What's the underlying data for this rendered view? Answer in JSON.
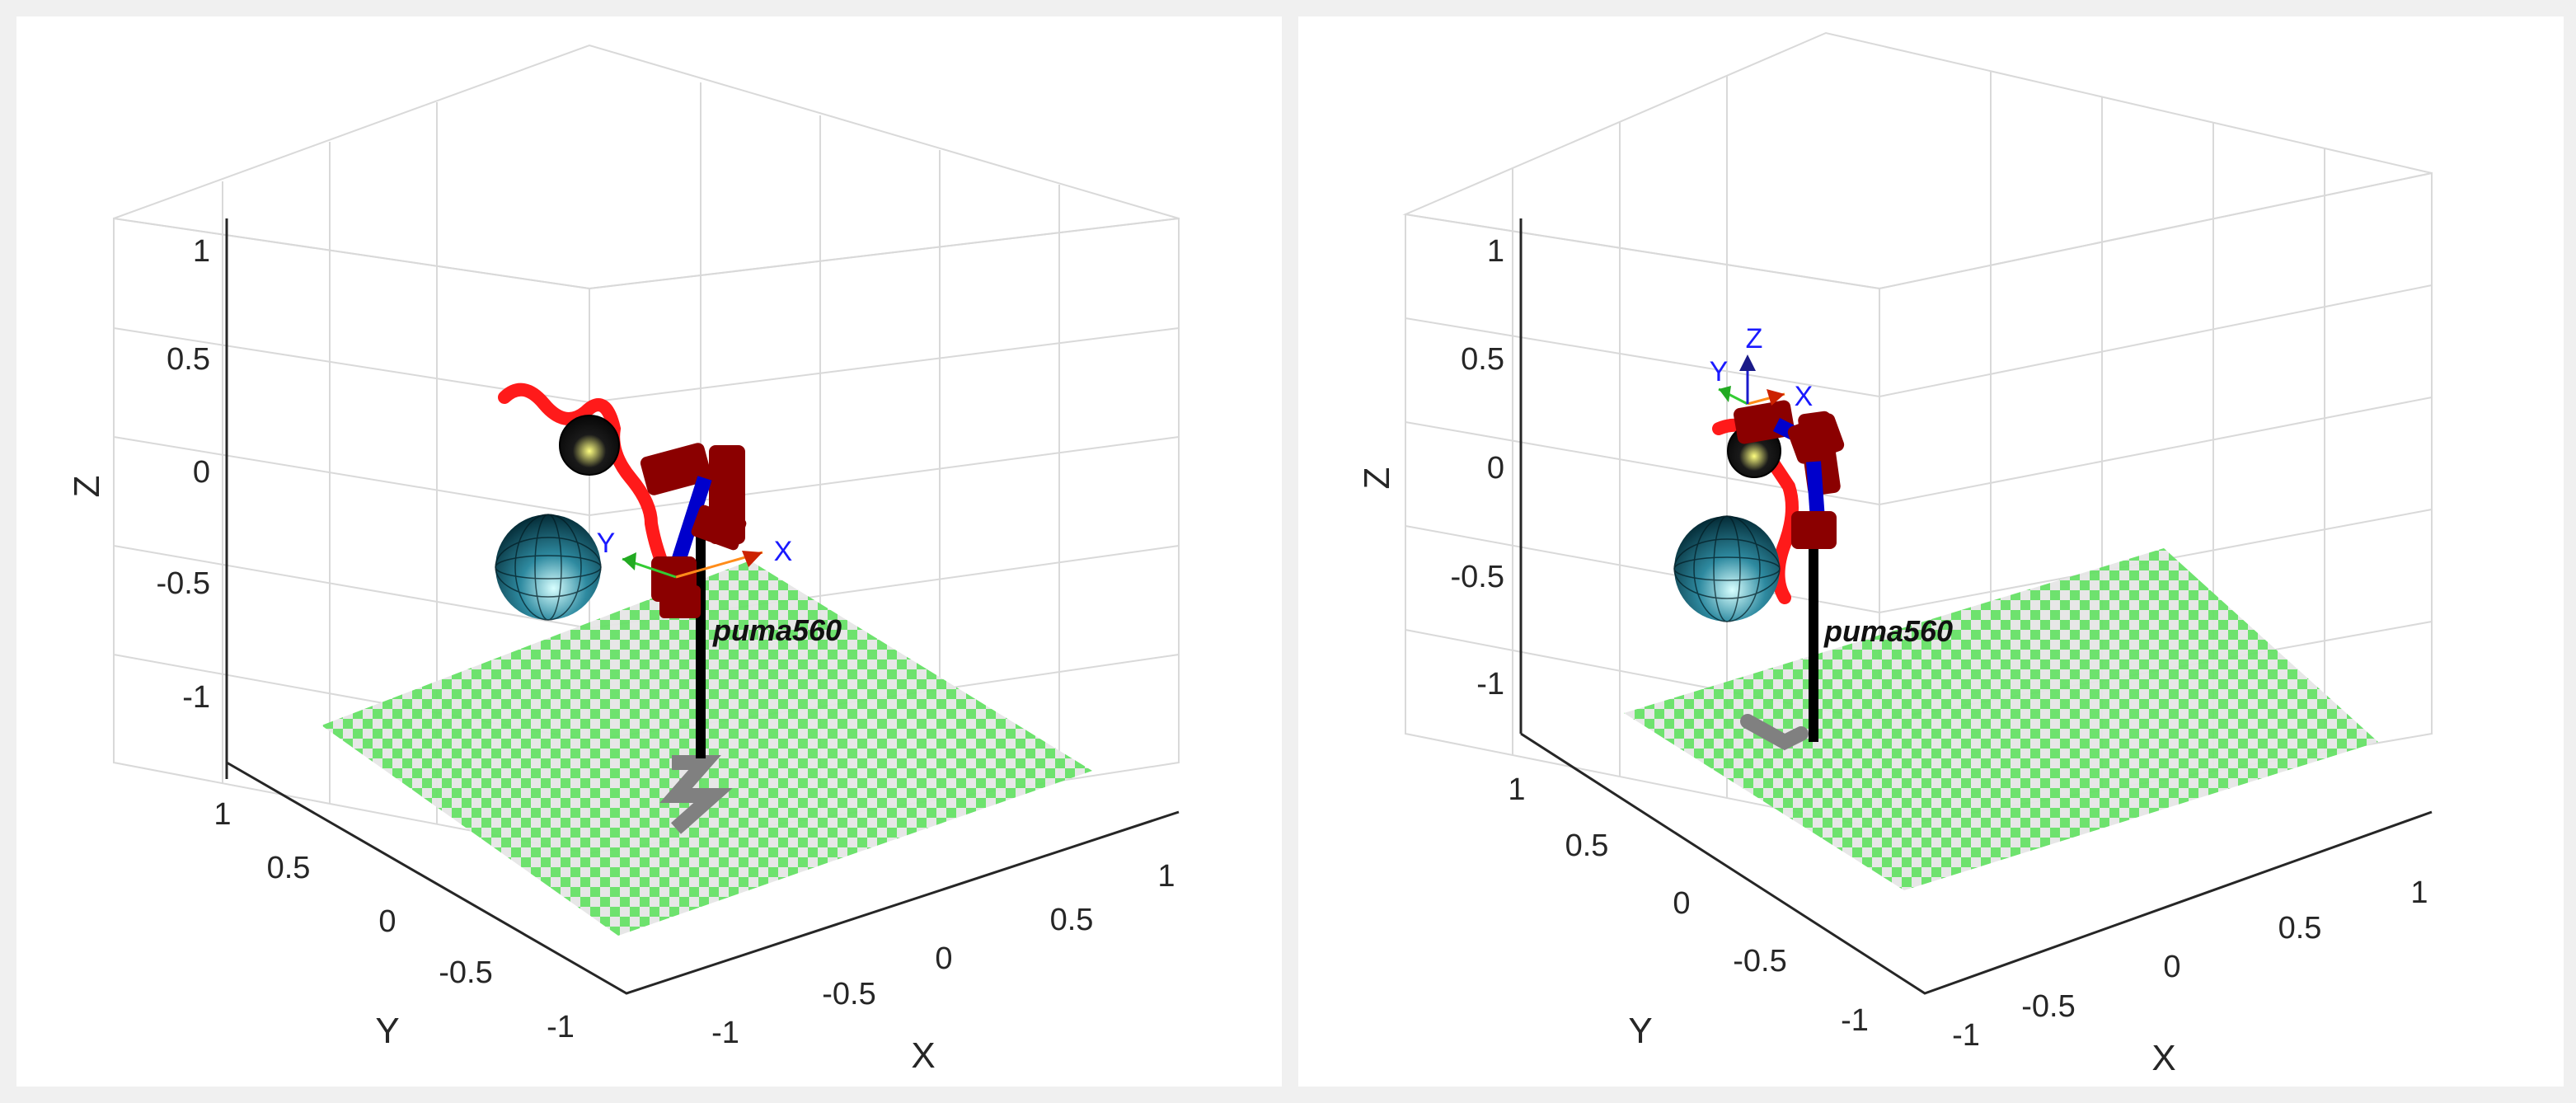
{
  "panels": [
    {
      "z_label": "Z",
      "y_label": "Y",
      "x_label": "X",
      "z_ticks": [
        "1",
        "0.5",
        "0",
        "-0.5",
        "-1"
      ],
      "y_ticks": [
        "1",
        "0.5",
        "0",
        "-0.5",
        "-1"
      ],
      "x_ticks": [
        "-1",
        "-0.5",
        "0",
        "0.5",
        "1"
      ],
      "robot_label": "puma560",
      "frame_labels": [
        "X",
        "Y"
      ]
    },
    {
      "z_label": "Z",
      "y_label": "Y",
      "x_label": "X",
      "z_ticks": [
        "1",
        "0.5",
        "0",
        "-0.5",
        "-1"
      ],
      "y_ticks": [
        "1",
        "0.5",
        "0",
        "-0.5",
        "-1"
      ],
      "x_ticks": [
        "-1",
        "-0.5",
        "0",
        "0.5",
        "1"
      ],
      "robot_label": "puma560",
      "frame_labels": [
        "X",
        "Y",
        "Z"
      ]
    }
  ],
  "colors": {
    "background": "#f0f0f0",
    "panel": "#ffffff",
    "grid": "#d9d9d9",
    "floor_green": "#66e066",
    "floor_light": "#e6e6e6",
    "trajectory": "#ff1a1a",
    "link": "#8b0000",
    "arm_blue": "#0000cc",
    "sphere": "#0b5e73",
    "pedestal": "#000000",
    "shadow": "#808080"
  }
}
